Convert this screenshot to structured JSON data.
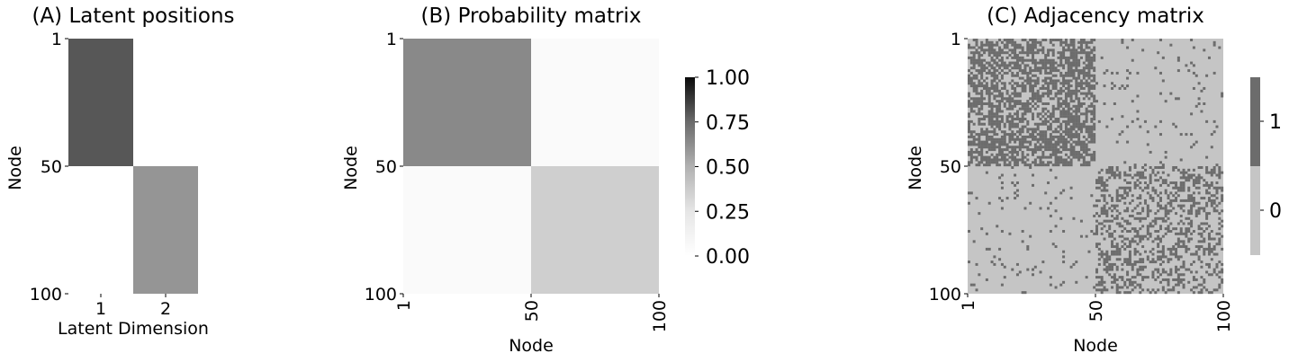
{
  "chart_data": [
    {
      "type": "heatmap",
      "title": "(A) Latent positions",
      "xlabel": "Latent Dimension",
      "ylabel": "Node",
      "xticks": [
        "1",
        "2"
      ],
      "yticks": [
        "1",
        "50",
        "100"
      ],
      "rows": [
        "1-50",
        "51-100"
      ],
      "columns": [
        "1",
        "2"
      ],
      "values": [
        [
          0.8,
          0.0
        ],
        [
          0.0,
          0.6
        ]
      ],
      "vmin": 0,
      "vmax": 1,
      "colormap": "white-to-black"
    },
    {
      "type": "heatmap",
      "title": "(B) Probability matrix",
      "xlabel": "Node",
      "ylabel": "Node",
      "xticks": [
        "1",
        "50",
        "100"
      ],
      "yticks": [
        "1",
        "50",
        "100"
      ],
      "rows": [
        "1-50",
        "51-100"
      ],
      "columns": [
        "1-50",
        "51-100"
      ],
      "values": [
        [
          0.64,
          0.05
        ],
        [
          0.05,
          0.36
        ]
      ],
      "vmin": 0,
      "vmax": 1,
      "colorbar_ticks": [
        "0.00",
        "0.25",
        "0.50",
        "0.75",
        "1.00"
      ],
      "colormap": "white-to-black"
    },
    {
      "type": "heatmap",
      "title": "(C) Adjacency matrix",
      "xlabel": "Node",
      "ylabel": "Node",
      "xticks": [
        "1",
        "50",
        "100"
      ],
      "yticks": [
        "1",
        "50",
        "100"
      ],
      "n_nodes": 100,
      "block_size": 50,
      "within_block_edge_prob": [
        0.64,
        0.36
      ],
      "between_block_edge_prob": 0.05,
      "colorbar_ticks": [
        "0",
        "1"
      ],
      "colors": {
        "0": "#c5c5c5",
        "1": "#6c6c6c"
      }
    }
  ]
}
